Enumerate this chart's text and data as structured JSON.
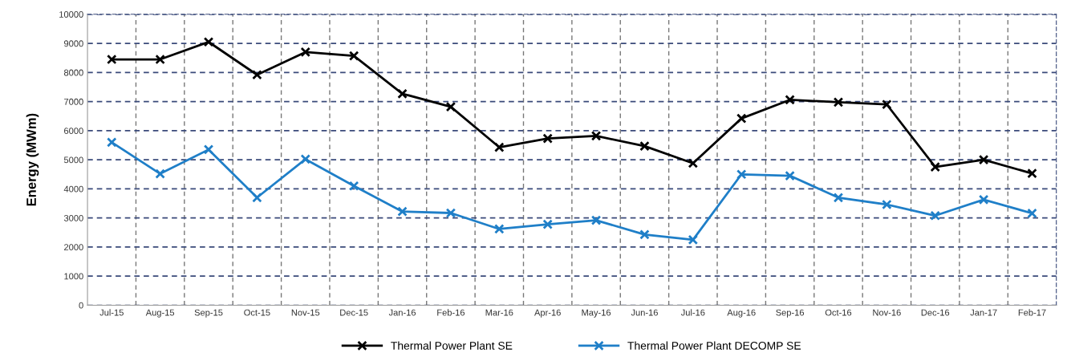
{
  "chart_data": {
    "type": "line",
    "ylabel": "Energy (MWm)",
    "categories": [
      "Jul-15",
      "Aug-15",
      "Sep-15",
      "Oct-15",
      "Nov-15",
      "Dec-15",
      "Jan-16",
      "Feb-16",
      "Mar-16",
      "Apr-16",
      "May-16",
      "Jun-16",
      "Jul-16",
      "Aug-16",
      "Sep-16",
      "Oct-16",
      "Nov-16",
      "Dec-16",
      "Jan-17",
      "Feb-17"
    ],
    "series": [
      {
        "name": "Thermal Power Plant SE",
        "color": "#000000",
        "values": [
          8450,
          8450,
          9050,
          7920,
          8700,
          8570,
          7270,
          6820,
          5430,
          5730,
          5820,
          5470,
          4880,
          6420,
          7060,
          6980,
          6900,
          4750,
          5000,
          4530
        ]
      },
      {
        "name": "Thermal Power Plant DECOMP SE",
        "color": "#1f7fc8",
        "values": [
          5600,
          4520,
          5350,
          3700,
          5020,
          4100,
          3220,
          3170,
          2620,
          2780,
          2920,
          2430,
          2250,
          4500,
          4450,
          3700,
          3460,
          3080,
          3630,
          3160
        ]
      }
    ],
    "ylim": [
      0,
      10000
    ],
    "yticks": [
      0,
      1000,
      2000,
      3000,
      4000,
      5000,
      6000,
      7000,
      8000,
      9000,
      10000
    ],
    "grid": true,
    "legend": "bottom",
    "marker": "cross",
    "line_style": "solid"
  }
}
